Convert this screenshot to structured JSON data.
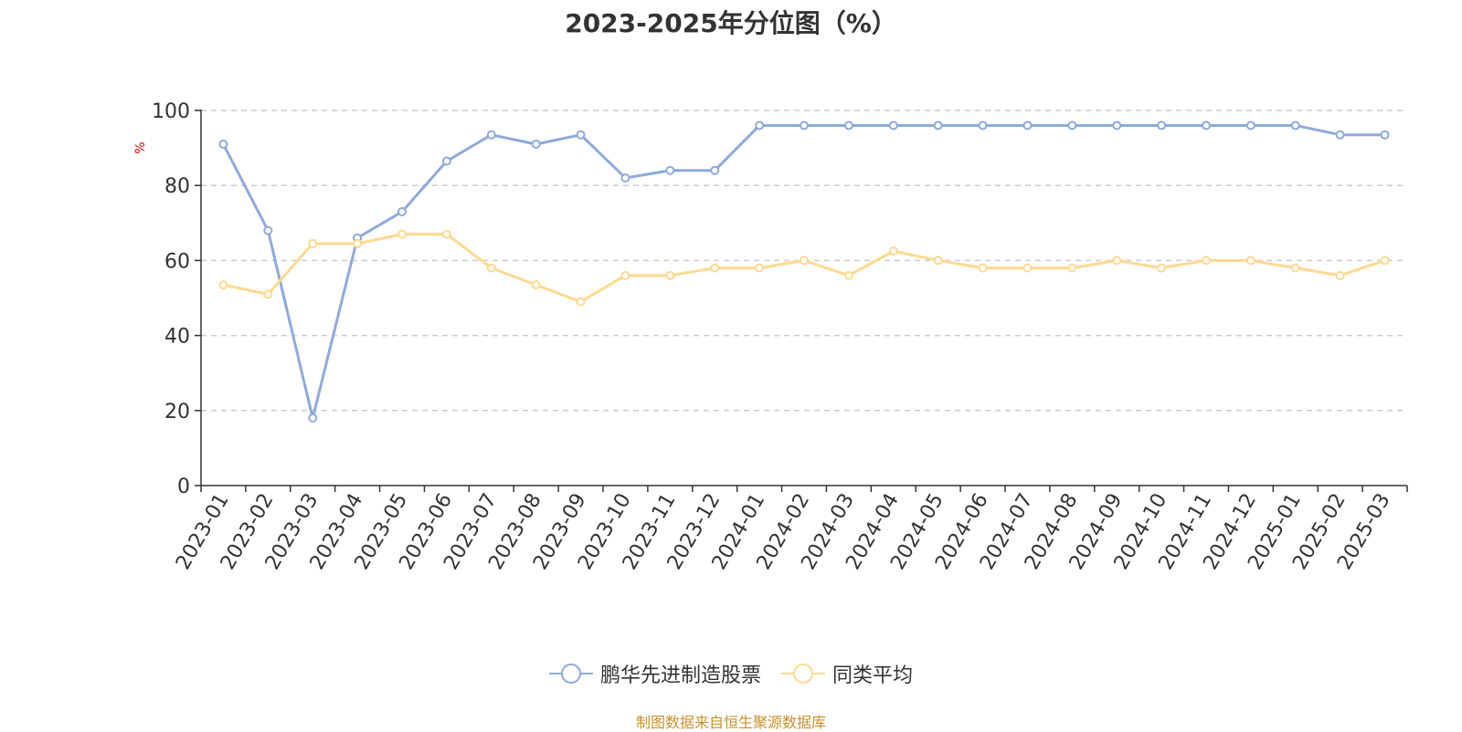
{
  "chart_data": {
    "type": "line",
    "title": "2023-2025年分位图（%）",
    "ylabel": "%",
    "xlabel": "",
    "ylim": [
      0,
      100
    ],
    "yticks": [
      0,
      20,
      40,
      60,
      80,
      100
    ],
    "grid": true,
    "legend_position": "bottom-center",
    "categories": [
      "2023-01",
      "2023-02",
      "2023-03",
      "2023-04",
      "2023-05",
      "2023-06",
      "2023-07",
      "2023-08",
      "2023-09",
      "2023-10",
      "2023-11",
      "2023-12",
      "2024-01",
      "2024-02",
      "2024-03",
      "2024-04",
      "2024-05",
      "2024-06",
      "2024-07",
      "2024-08",
      "2024-09",
      "2024-10",
      "2024-11",
      "2024-12",
      "2025-01",
      "2025-02",
      "2025-03"
    ],
    "series": [
      {
        "name": "鹏华先进制造股票",
        "color": "#8faadc",
        "values": [
          91,
          68,
          18,
          66,
          73,
          86.5,
          93.5,
          91,
          93.5,
          82,
          84,
          84,
          96,
          96,
          96,
          96,
          96,
          96,
          96,
          96,
          96,
          96,
          96,
          96,
          96,
          93.5,
          93.5
        ]
      },
      {
        "name": "同类平均",
        "color": "#ffd98f",
        "values": [
          53.5,
          51,
          64.5,
          64.5,
          67,
          67,
          58,
          53.5,
          49,
          56,
          56,
          58,
          58,
          60,
          56,
          62.5,
          60,
          58,
          58,
          58,
          60,
          58,
          60,
          60,
          58,
          56,
          60
        ]
      }
    ]
  },
  "footer": "制图数据来自恒生聚源数据库"
}
